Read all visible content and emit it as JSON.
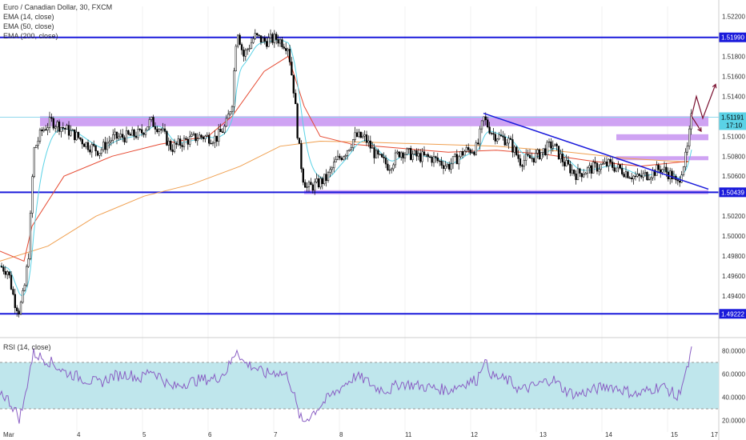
{
  "header": {
    "title": "Euro / Canadian Dollar, 30, FXCM",
    "indicators": [
      "EMA (14, close)",
      "EMA (50, close)",
      "EMA (200, close)"
    ]
  },
  "rsi_panel": {
    "label": "RSI (14, close)"
  },
  "colors": {
    "background": "#ffffff",
    "candle": "#000000",
    "level_line": "#1a1adb",
    "zone": "#c38cf0",
    "ema14": "#5ad2e6",
    "ema50": "#e64a32",
    "ema200": "#f0a050",
    "rsi_line": "#8a5fc4",
    "rsi_fill": "#bfe6ec",
    "arrow": "#7a1030",
    "grid": "#f0f0f0"
  },
  "chart_data": [
    {
      "type": "candlestick",
      "title": "Euro / Canadian Dollar, 30, FXCM",
      "ylim": [
        1.49,
        1.523
      ],
      "yticks": [
        "1.52200",
        "1.51800",
        "1.51600",
        "1.51400",
        "1.51000",
        "1.50800",
        "1.50600",
        "1.50200",
        "1.50000",
        "1.49800",
        "1.49600",
        "1.49400"
      ],
      "x_categories": [
        "Mar",
        "4",
        "5",
        "6",
        "7",
        "8",
        "11",
        "12",
        "13",
        "14",
        "15",
        "17"
      ],
      "series": [
        {
          "name": "EMA (14, close)",
          "style": "line"
        },
        {
          "name": "EMA (50, close)",
          "style": "line"
        },
        {
          "name": "EMA (200, close)",
          "style": "line"
        }
      ],
      "price_path": [
        [
          0,
          1.497
        ],
        [
          10,
          1.4965
        ],
        [
          18,
          1.4935
        ],
        [
          24,
          1.4925
        ],
        [
          30,
          1.4945
        ],
        [
          36,
          1.4985
        ],
        [
          42,
          1.5085
        ],
        [
          52,
          1.5105
        ],
        [
          64,
          1.5115
        ],
        [
          80,
          1.5108
        ],
        [
          96,
          1.51
        ],
        [
          108,
          1.5092
        ],
        [
          124,
          1.5085
        ],
        [
          140,
          1.5098
        ],
        [
          160,
          1.51
        ],
        [
          176,
          1.5103
        ],
        [
          188,
          1.5115
        ],
        [
          200,
          1.5108
        ],
        [
          214,
          1.5088
        ],
        [
          230,
          1.5095
        ],
        [
          250,
          1.51
        ],
        [
          270,
          1.5098
        ],
        [
          282,
          1.511
        ],
        [
          290,
          1.5135
        ],
        [
          296,
          1.521
        ],
        [
          304,
          1.518
        ],
        [
          318,
          1.52
        ],
        [
          330,
          1.5195
        ],
        [
          346,
          1.5198
        ],
        [
          360,
          1.519
        ],
        [
          368,
          1.514
        ],
        [
          372,
          1.51
        ],
        [
          378,
          1.506
        ],
        [
          384,
          1.5048
        ],
        [
          396,
          1.5052
        ],
        [
          408,
          1.5058
        ],
        [
          420,
          1.5075
        ],
        [
          432,
          1.5085
        ],
        [
          444,
          1.51
        ],
        [
          456,
          1.5098
        ],
        [
          470,
          1.508
        ],
        [
          486,
          1.507
        ],
        [
          500,
          1.5085
        ],
        [
          520,
          1.508
        ],
        [
          540,
          1.5078
        ],
        [
          560,
          1.507
        ],
        [
          580,
          1.5085
        ],
        [
          596,
          1.5088
        ],
        [
          604,
          1.5118
        ],
        [
          616,
          1.5102
        ],
        [
          636,
          1.5095
        ],
        [
          650,
          1.5075
        ],
        [
          670,
          1.508
        ],
        [
          690,
          1.5092
        ],
        [
          706,
          1.5072
        ],
        [
          720,
          1.5062
        ],
        [
          740,
          1.5068
        ],
        [
          760,
          1.5072
        ],
        [
          780,
          1.5065
        ],
        [
          796,
          1.5058
        ],
        [
          810,
          1.5062
        ],
        [
          826,
          1.5068
        ],
        [
          840,
          1.506
        ],
        [
          846,
          1.505
        ],
        [
          852,
          1.5068
        ],
        [
          858,
          1.5082
        ],
        [
          864,
          1.512
        ]
      ],
      "ema50_path": [
        [
          0,
          1.4985
        ],
        [
          30,
          1.4975
        ],
        [
          40,
          1.501
        ],
        [
          80,
          1.506
        ],
        [
          140,
          1.508
        ],
        [
          200,
          1.5092
        ],
        [
          260,
          1.51
        ],
        [
          290,
          1.512
        ],
        [
          330,
          1.5165
        ],
        [
          360,
          1.518
        ],
        [
          380,
          1.513
        ],
        [
          400,
          1.51
        ],
        [
          440,
          1.5092
        ],
        [
          500,
          1.5088
        ],
        [
          560,
          1.5084
        ],
        [
          620,
          1.5086
        ],
        [
          680,
          1.5082
        ],
        [
          740,
          1.5075
        ],
        [
          800,
          1.507
        ],
        [
          860,
          1.5075
        ]
      ],
      "ema200_path": [
        [
          0,
          1.4975
        ],
        [
          60,
          1.499
        ],
        [
          120,
          1.502
        ],
        [
          180,
          1.504
        ],
        [
          240,
          1.5052
        ],
        [
          300,
          1.507
        ],
        [
          350,
          1.509
        ],
        [
          400,
          1.5095
        ],
        [
          460,
          1.5094
        ],
        [
          540,
          1.5092
        ],
        [
          620,
          1.509
        ],
        [
          700,
          1.5085
        ],
        [
          780,
          1.5078
        ],
        [
          860,
          1.5074
        ]
      ],
      "horizontal_levels": [
        {
          "value": 1.5199,
          "label": "1.51990"
        },
        {
          "value": 1.50439,
          "label": "1.50439"
        },
        {
          "value": 1.49222,
          "label": "1.49222"
        }
      ],
      "current_price": {
        "value": 1.51191,
        "label": "1.51191",
        "countdown": "17:10"
      },
      "zones": [
        {
          "x0": 50,
          "x1": 885,
          "y0": 1.511,
          "y1": 1.512
        },
        {
          "x0": 770,
          "x1": 885,
          "y0": 1.5096,
          "y1": 1.5102
        },
        {
          "x0": 770,
          "x1": 885,
          "y0": 1.5076,
          "y1": 1.508
        },
        {
          "x0": 380,
          "x1": 885,
          "y0": 1.5042,
          "y1": 1.5046
        }
      ],
      "trendline": {
        "x0": 604,
        "y0": 1.5123,
        "x1": 885,
        "y1": 1.5047
      }
    },
    {
      "type": "line",
      "title": "RSI (14, close)",
      "ylim": [
        10,
        90
      ],
      "yticks": [
        "80.0000",
        "60.0000",
        "40.0000",
        "20.0000"
      ],
      "band": [
        30,
        70
      ],
      "series": [
        {
          "name": "RSI (14, close)"
        }
      ],
      "rsi_path": [
        [
          0,
          45
        ],
        [
          10,
          38
        ],
        [
          18,
          30
        ],
        [
          24,
          22
        ],
        [
          30,
          35
        ],
        [
          36,
          60
        ],
        [
          42,
          78
        ],
        [
          52,
          74
        ],
        [
          64,
          70
        ],
        [
          80,
          62
        ],
        [
          96,
          58
        ],
        [
          108,
          55
        ],
        [
          124,
          52
        ],
        [
          140,
          58
        ],
        [
          160,
          60
        ],
        [
          176,
          56
        ],
        [
          188,
          64
        ],
        [
          200,
          58
        ],
        [
          214,
          48
        ],
        [
          230,
          52
        ],
        [
          250,
          55
        ],
        [
          270,
          56
        ],
        [
          282,
          62
        ],
        [
          290,
          72
        ],
        [
          296,
          82
        ],
        [
          304,
          70
        ],
        [
          318,
          66
        ],
        [
          330,
          60
        ],
        [
          346,
          62
        ],
        [
          360,
          58
        ],
        [
          368,
          40
        ],
        [
          372,
          28
        ],
        [
          378,
          18
        ],
        [
          384,
          22
        ],
        [
          396,
          30
        ],
        [
          408,
          38
        ],
        [
          420,
          45
        ],
        [
          432,
          52
        ],
        [
          444,
          58
        ],
        [
          456,
          55
        ],
        [
          470,
          48
        ],
        [
          486,
          46
        ],
        [
          500,
          52
        ],
        [
          520,
          50
        ],
        [
          540,
          48
        ],
        [
          560,
          46
        ],
        [
          580,
          52
        ],
        [
          596,
          55
        ],
        [
          604,
          72
        ],
        [
          616,
          58
        ],
        [
          636,
          54
        ],
        [
          650,
          46
        ],
        [
          670,
          50
        ],
        [
          690,
          56
        ],
        [
          706,
          46
        ],
        [
          720,
          42
        ],
        [
          740,
          46
        ],
        [
          760,
          50
        ],
        [
          780,
          46
        ],
        [
          796,
          42
        ],
        [
          810,
          46
        ],
        [
          826,
          50
        ],
        [
          840,
          44
        ],
        [
          846,
          38
        ],
        [
          852,
          52
        ],
        [
          858,
          62
        ],
        [
          864,
          80
        ]
      ]
    }
  ],
  "forecast_arrows": [
    {
      "points": [
        [
          864,
          1.512
        ],
        [
          870,
          1.514
        ],
        [
          878,
          1.5118
        ],
        [
          894,
          1.5152
        ]
      ]
    },
    {
      "points": [
        [
          864,
          1.512
        ],
        [
          876,
          1.5105
        ]
      ]
    }
  ]
}
